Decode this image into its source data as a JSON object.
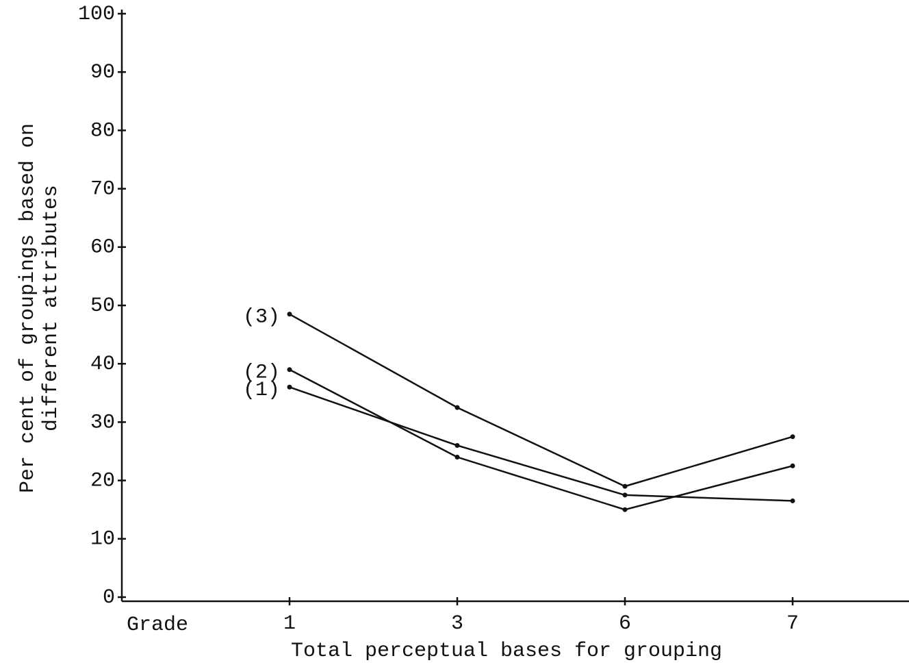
{
  "chart_data": {
    "type": "line",
    "ylabel": [
      "Per cent of groupings based on",
      "different attributes"
    ],
    "xlabel": "Total perceptual bases for grouping",
    "x_prefix": "Grade",
    "categories": [
      "1",
      "3",
      "6",
      "7"
    ],
    "series": [
      {
        "name": "(1)",
        "color": "#111111",
        "values": [
          36,
          26,
          17.5,
          16.5
        ]
      },
      {
        "name": "(2)",
        "color": "#111111",
        "values": [
          39,
          24,
          15,
          22.5
        ]
      },
      {
        "name": "(3)",
        "color": "#111111",
        "values": [
          48.5,
          32.5,
          19,
          27.5
        ]
      }
    ],
    "ylim": [
      0,
      100
    ],
    "yticks": [
      0,
      10,
      20,
      30,
      40,
      50,
      60,
      70,
      80,
      90,
      100
    ],
    "grid": false
  }
}
